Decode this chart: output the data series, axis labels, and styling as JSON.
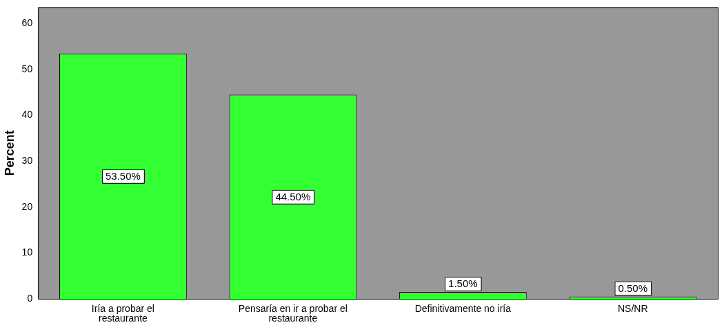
{
  "chart_data": {
    "type": "bar",
    "ylabel": "Percent",
    "categories": [
      "Iría a probar el restaurante",
      "Pensaría en ir a probar el restaurante",
      "Definitivamente no iría",
      "NS/NR"
    ],
    "values": [
      53.5,
      44.5,
      1.5,
      0.5
    ],
    "value_labels": [
      "53.50%",
      "44.50%",
      "1.50%",
      "0.50%"
    ],
    "color": "#33ff33",
    "ylim": [
      0,
      63.6
    ],
    "yticks": [
      0,
      10,
      20,
      30,
      40,
      50,
      60
    ],
    "grid": false,
    "legend": false
  }
}
